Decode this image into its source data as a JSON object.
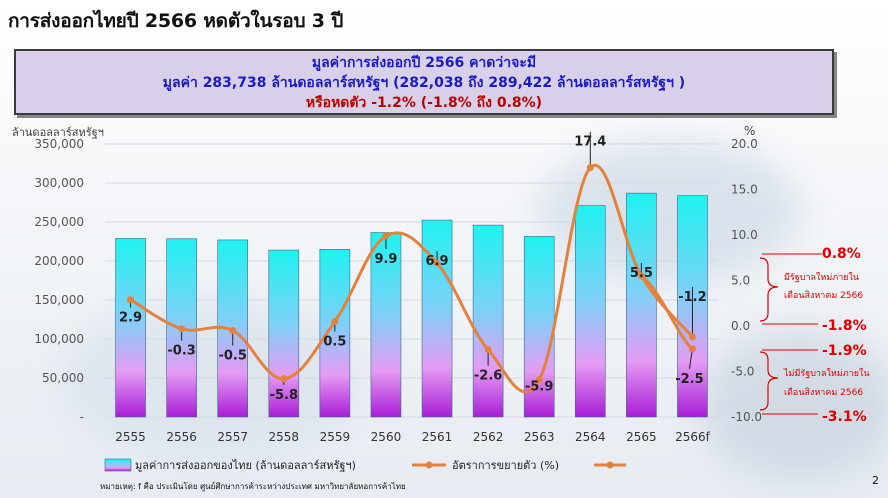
{
  "title": "การส่งออกไทยปี 2566 หดตัวในรอบ 3 ปี",
  "summary": {
    "line1": "มูลค่าการส่งออกปี 2566 คาดว่าจะมี",
    "line2": "มูลค่า 283,738 ล้านดอลลาร์สหรัฐฯ (282,038 ถึง 289,422 ล้านดอลลาร์สหรัฐฯ )",
    "line3": "หรือหดตัว -1.2% (-1.8% ถึง 0.8%)"
  },
  "chart_data": {
    "type": "bar",
    "categories": [
      "2555",
      "2556",
      "2557",
      "2558",
      "2559",
      "2560",
      "2561",
      "2562",
      "2563",
      "2564",
      "2565",
      "2566f"
    ],
    "series": [
      {
        "name": "มูลค่าการส่งออกของไทย (ล้านดอลลาร์สหรัฐฯ)",
        "type": "bar",
        "axis": "left",
        "values": [
          229000,
          228500,
          227000,
          214000,
          215000,
          236500,
          252500,
          246000,
          231500,
          271000,
          287000,
          283738
        ]
      },
      {
        "name": "อัตราการขยายตัว (%)",
        "type": "line",
        "axis": "right",
        "values": [
          2.9,
          -0.3,
          -0.5,
          -5.8,
          0.5,
          9.9,
          6.9,
          -2.6,
          -5.9,
          17.4,
          5.5,
          -1.2
        ]
      }
    ],
    "data_labels": [
      "2.9",
      "-0.3",
      "-0.5",
      "-5.8",
      "0.5",
      "9.9",
      "6.9",
      "-2.6",
      "-5.9",
      "17.4",
      "5.5",
      "-1.2"
    ],
    "alt_label": "-2.5",
    "alt_value": -2.5,
    "ylabel": "ล้านดอลลาร์สหรัฐฯ",
    "ylabel_right": "%",
    "ylim": [
      0,
      350000
    ],
    "ylim_right": [
      -10,
      20
    ],
    "yticks_left": [
      "350,000",
      "300,000",
      "250,000",
      "200,000",
      "150,000",
      "100,000",
      "50,000",
      "-"
    ],
    "yticks_right": [
      "20.0",
      "15.0",
      "10.0",
      "5.0",
      "0.0",
      "-5.0",
      "-10.0"
    ],
    "legend_position": "bottom",
    "third_legend_name": "",
    "annotations": {
      "upper_high": "0.8%",
      "upper_text1": "มีรัฐบาลใหม่ภายใน",
      "upper_text2": "เดือนสิงหาคม 2566",
      "upper_low": "-1.8%",
      "lower_high": "-1.9%",
      "lower_text1": "ไม่มีรัฐบาลใหม่ภายใน",
      "lower_text2": "เดือนสิงหาคม 2566",
      "lower_low": "-3.1%"
    }
  },
  "footnote": "หมายเหตุ: f คือ ประเมินโดย ศูนย์ศึกษาการค้าระหว่างประเทศ มหาวิทยาลัยหอการค้าไทย",
  "page_number": "2",
  "colors": {
    "bar_top": "#1ff2f0",
    "bar_bottom": "#a81ed6",
    "line": "#e4823c",
    "annotation_red": "#e00000",
    "summary_blue": "#1b1bc4",
    "summary_red": "#c00000"
  }
}
